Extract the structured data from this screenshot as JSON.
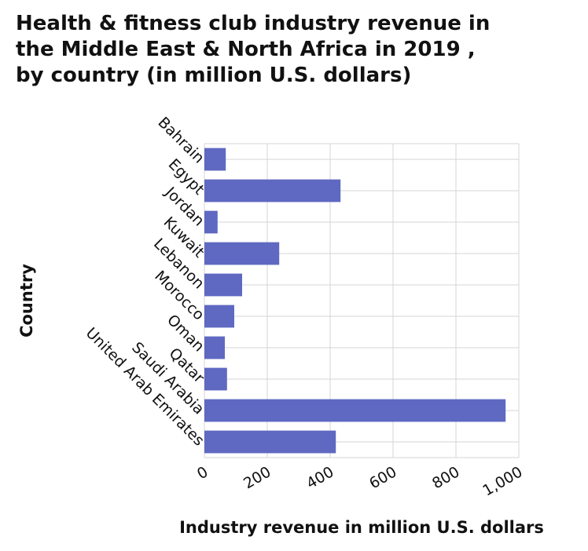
{
  "chart_data": {
    "type": "bar",
    "orientation": "horizontal",
    "title": [
      "Health & fitness club industry revenue in",
      "the Middle East & North Africa in 2019 ,",
      "by country (in million U.S. dollars)"
    ],
    "xlabel": "Industry revenue in million U.S. dollars",
    "ylabel": "Country",
    "categories": [
      "Bahrain",
      "Egypt",
      "Jordan",
      "Kuwait",
      "Lebanon",
      "Morocco",
      "Oman",
      "Qatar",
      "Saudi Arabia",
      "United Arab Emirates"
    ],
    "values": [
      68,
      433,
      42,
      238,
      120,
      95,
      65,
      72,
      958,
      418
    ],
    "xlim": [
      0,
      1000
    ],
    "xticks": [
      0,
      200,
      400,
      600,
      800,
      1000
    ],
    "xtick_labels": [
      "0",
      "200",
      "400",
      "600",
      "800",
      "1,000"
    ],
    "grid": true,
    "bar_color": "#5f69c1",
    "grid_color": "#d4d4d4"
  }
}
